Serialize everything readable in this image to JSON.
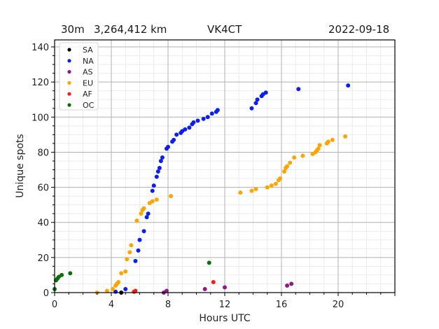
{
  "header": {
    "band": "30m",
    "distance": "3,264,412 km",
    "callsign": "VK4CT",
    "date": "2022-09-18"
  },
  "chart_data": {
    "type": "scatter",
    "title": "30m   3,264,412 km   VK4CT   2022-09-18",
    "xlabel": "Hours UTC",
    "ylabel": "Unique spots",
    "xlim": [
      0,
      24
    ],
    "ylim": [
      0,
      144
    ],
    "xticks": [
      0,
      4,
      8,
      12,
      16,
      20
    ],
    "yticks": [
      0,
      20,
      40,
      60,
      80,
      100,
      120,
      140
    ],
    "grid": true,
    "minor_grid": true,
    "legend_position": "upper left",
    "series": [
      {
        "name": "SA",
        "color": "#000000",
        "points": [
          [
            4.7,
            0
          ]
        ]
      },
      {
        "name": "NA",
        "color": "#0a1ff0",
        "points": [
          [
            4.3,
            0.5
          ],
          [
            5.0,
            2
          ],
          [
            5.7,
            18
          ],
          [
            5.9,
            24
          ],
          [
            6.0,
            30
          ],
          [
            6.3,
            35
          ],
          [
            6.5,
            43
          ],
          [
            6.6,
            45
          ],
          [
            6.9,
            58
          ],
          [
            7.0,
            61
          ],
          [
            7.2,
            66
          ],
          [
            7.3,
            69
          ],
          [
            7.4,
            71
          ],
          [
            7.5,
            75
          ],
          [
            7.6,
            77
          ],
          [
            7.9,
            82
          ],
          [
            8.0,
            83
          ],
          [
            8.3,
            86
          ],
          [
            8.4,
            87
          ],
          [
            8.6,
            90
          ],
          [
            8.9,
            91
          ],
          [
            9.0,
            92
          ],
          [
            9.2,
            93
          ],
          [
            9.5,
            94
          ],
          [
            9.7,
            96
          ],
          [
            9.8,
            97
          ],
          [
            10.1,
            98
          ],
          [
            10.5,
            99
          ],
          [
            10.8,
            100
          ],
          [
            11.1,
            102
          ],
          [
            11.4,
            103
          ],
          [
            11.5,
            104
          ],
          [
            13.9,
            105
          ],
          [
            14.2,
            108
          ],
          [
            14.3,
            110
          ],
          [
            14.6,
            112
          ],
          [
            14.7,
            113
          ],
          [
            14.9,
            114
          ],
          [
            17.2,
            116
          ],
          [
            20.7,
            118
          ]
        ]
      },
      {
        "name": "AS",
        "color": "#8b1a8b",
        "points": [
          [
            7.7,
            0
          ],
          [
            7.9,
            1
          ],
          [
            10.6,
            2
          ],
          [
            12.0,
            3
          ],
          [
            16.4,
            4
          ],
          [
            16.7,
            5
          ]
        ]
      },
      {
        "name": "EU",
        "color": "#ffa500",
        "points": [
          [
            3.0,
            0
          ],
          [
            3.7,
            1
          ],
          [
            4.1,
            2
          ],
          [
            4.3,
            4
          ],
          [
            4.4,
            5
          ],
          [
            4.5,
            6
          ],
          [
            4.7,
            11
          ],
          [
            5.0,
            12
          ],
          [
            5.1,
            19
          ],
          [
            5.3,
            23
          ],
          [
            5.4,
            27
          ],
          [
            5.8,
            41
          ],
          [
            6.1,
            45
          ],
          [
            6.2,
            47
          ],
          [
            6.3,
            48
          ],
          [
            6.7,
            51
          ],
          [
            6.9,
            52
          ],
          [
            7.2,
            53
          ],
          [
            8.2,
            55
          ],
          [
            13.1,
            57
          ],
          [
            13.9,
            58
          ],
          [
            14.2,
            59
          ],
          [
            15.0,
            60
          ],
          [
            15.3,
            61
          ],
          [
            15.6,
            62
          ],
          [
            15.8,
            64
          ],
          [
            15.9,
            65
          ],
          [
            16.2,
            69
          ],
          [
            16.3,
            71
          ],
          [
            16.4,
            72
          ],
          [
            16.6,
            74
          ],
          [
            16.9,
            77
          ],
          [
            17.5,
            78
          ],
          [
            18.2,
            79
          ],
          [
            18.4,
            80
          ],
          [
            18.5,
            81
          ],
          [
            18.6,
            82
          ],
          [
            18.7,
            84
          ],
          [
            19.2,
            85
          ],
          [
            19.3,
            86
          ],
          [
            19.6,
            87
          ],
          [
            20.5,
            89
          ]
        ]
      },
      {
        "name": "AF",
        "color": "#ff1a1a",
        "points": [
          [
            5.6,
            0.5
          ],
          [
            5.7,
            1
          ],
          [
            11.2,
            6
          ]
        ]
      },
      {
        "name": "OC",
        "color": "#0b6e0b",
        "points": [
          [
            0.0,
            2
          ],
          [
            0.1,
            7
          ],
          [
            0.2,
            8
          ],
          [
            0.3,
            9
          ],
          [
            0.5,
            10
          ],
          [
            1.1,
            11
          ],
          [
            10.9,
            17
          ]
        ]
      }
    ]
  }
}
